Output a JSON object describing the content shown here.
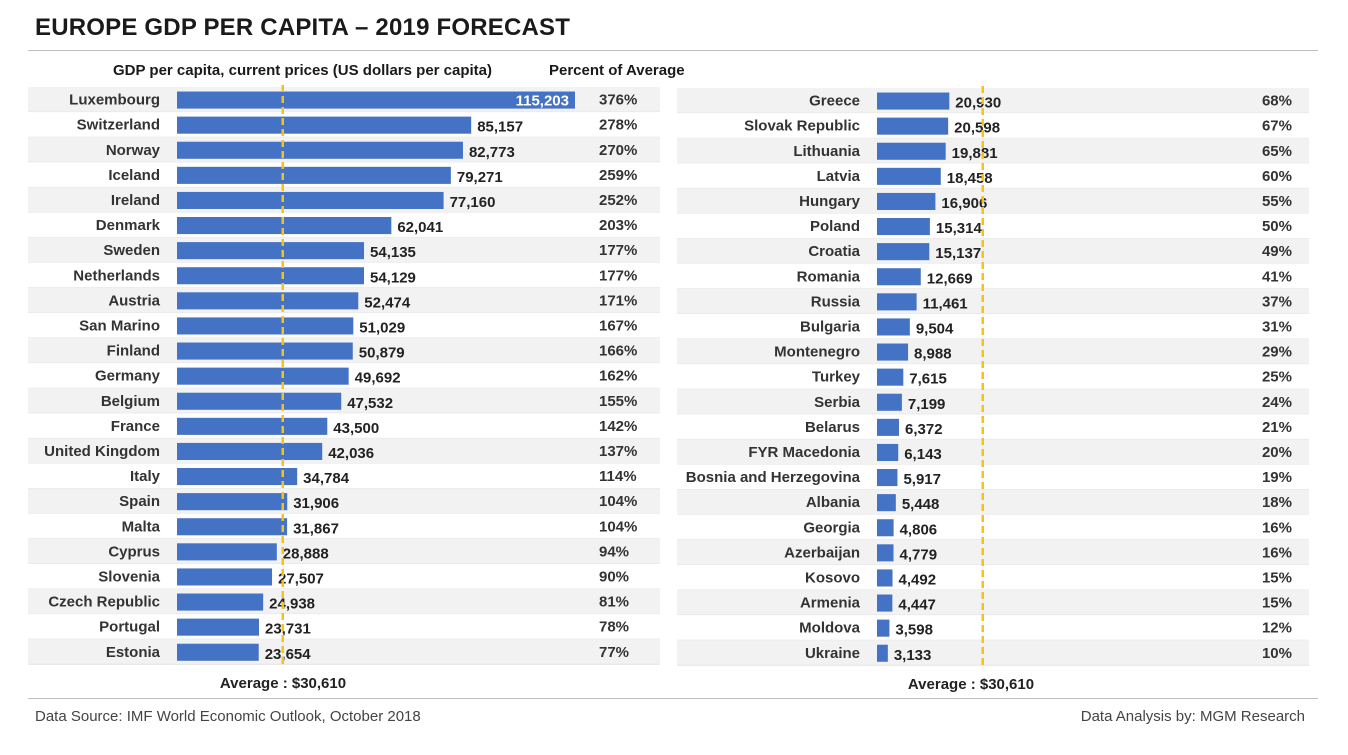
{
  "header": {
    "title": "EUROPE GDP PER CAPITA – 2019 FORECAST",
    "col_gdp": "GDP per capita, current prices (US dollars per capita)",
    "col_pct": "Percent of Average"
  },
  "footer": {
    "source": "Data Source: IMF World Economic Outlook, October 2018",
    "analysis": "Data Analysis by: MGM Research"
  },
  "colors": {
    "bar": "#4472c4",
    "average_line": "#f5c21b",
    "row_alt": "#f2f2f2"
  },
  "chart_data": [
    {
      "type": "bar",
      "orientation": "horizontal",
      "title": "GDP per capita, current prices (US dollars per capita)",
      "average_value": 30610,
      "average_label": "Average : $30,610",
      "xlim": [
        0,
        115203
      ],
      "categories": [
        "Luxembourg",
        "Switzerland",
        "Norway",
        "Iceland",
        "Ireland",
        "Denmark",
        "Sweden",
        "Netherlands",
        "Austria",
        "San Marino",
        "Finland",
        "Germany",
        "Belgium",
        "France",
        "United Kingdom",
        "Italy",
        "Spain",
        "Malta",
        "Cyprus",
        "Slovenia",
        "Czech Republic",
        "Portugal",
        "Estonia"
      ],
      "values": [
        115203,
        85157,
        82773,
        79271,
        77160,
        62041,
        54135,
        54129,
        52474,
        51029,
        50879,
        49692,
        47532,
        43500,
        42036,
        34784,
        31906,
        31867,
        28888,
        27507,
        24938,
        23731,
        23654
      ],
      "value_labels": [
        "115,203",
        "85,157",
        "82,773",
        "79,271",
        "77,160",
        "62,041",
        "54,135",
        "54,129",
        "52,474",
        "51,029",
        "50,879",
        "49,692",
        "47,532",
        "43,500",
        "42,036",
        "34,784",
        "31,906",
        "31,867",
        "28,888",
        "27,507",
        "24,938",
        "23,731",
        "23,654"
      ],
      "percent_of_average": [
        "376%",
        "278%",
        "270%",
        "259%",
        "252%",
        "203%",
        "177%",
        "177%",
        "171%",
        "167%",
        "166%",
        "162%",
        "155%",
        "142%",
        "137%",
        "114%",
        "104%",
        "104%",
        "94%",
        "90%",
        "81%",
        "78%",
        "77%"
      ]
    },
    {
      "type": "bar",
      "orientation": "horizontal",
      "average_value": 30610,
      "average_label": "Average : $30,610",
      "xlim": [
        0,
        115203
      ],
      "categories": [
        "Greece",
        "Slovak Republic",
        "Lithuania",
        "Latvia",
        "Hungary",
        "Poland",
        "Croatia",
        "Romania",
        "Russia",
        "Bulgaria",
        "Montenegro",
        "Turkey",
        "Serbia",
        "Belarus",
        "FYR Macedonia",
        "Bosnia and Herzegovina",
        "Albania",
        "Georgia",
        "Azerbaijan",
        "Kosovo",
        "Armenia",
        "Moldova",
        "Ukraine"
      ],
      "values": [
        20930,
        20598,
        19881,
        18458,
        16906,
        15314,
        15137,
        12669,
        11461,
        9504,
        8988,
        7615,
        7199,
        6372,
        6143,
        5917,
        5448,
        4806,
        4779,
        4492,
        4447,
        3598,
        3133
      ],
      "value_labels": [
        "20,930",
        "20,598",
        "19,881",
        "18,458",
        "16,906",
        "15,314",
        "15,137",
        "12,669",
        "11,461",
        "9,504",
        "8,988",
        "7,615",
        "7,199",
        "6,372",
        "6,143",
        "5,917",
        "5,448",
        "4,806",
        "4,779",
        "4,492",
        "4,447",
        "3,598",
        "3,133"
      ],
      "percent_of_average": [
        "68%",
        "67%",
        "65%",
        "60%",
        "55%",
        "50%",
        "49%",
        "41%",
        "37%",
        "31%",
        "29%",
        "25%",
        "24%",
        "21%",
        "20%",
        "19%",
        "18%",
        "16%",
        "16%",
        "15%",
        "15%",
        "12%",
        "10%"
      ]
    }
  ]
}
